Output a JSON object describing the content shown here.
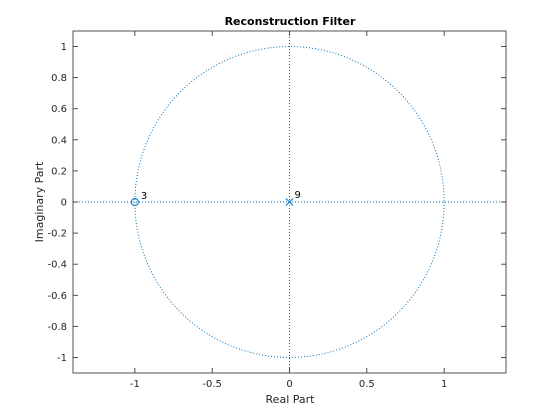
{
  "chart_data": {
    "type": "scatter",
    "title": "Reconstruction Filter",
    "xlabel": "Real Part",
    "ylabel": "Imaginary Part",
    "xlim": [
      -1.4,
      1.4
    ],
    "ylim": [
      -1.1,
      1.1
    ],
    "xticks": [
      -1,
      -0.5,
      0,
      0.5,
      1
    ],
    "xtick_labels": [
      "-1",
      "-0.5",
      "0",
      "0.5",
      "1"
    ],
    "yticks": [
      1,
      0.8,
      0.6,
      0.4,
      0.2,
      0,
      -0.2,
      -0.4,
      -0.6,
      -0.8,
      -1
    ],
    "ytick_labels": [
      "1",
      "0.8",
      "0.6",
      "0.4",
      "0.2",
      "0",
      "-0.2",
      "-0.4",
      "-0.6",
      "-0.8",
      "-1"
    ],
    "grid": false,
    "unit_circle": true,
    "zeros": [
      {
        "re": -1,
        "im": 0,
        "multiplicity": "3"
      }
    ],
    "poles": [
      {
        "re": 0,
        "im": 0,
        "multiplicity": "9"
      }
    ],
    "colors": {
      "marker": "#0072bd",
      "guide": "#0072bd",
      "axes": "#262626"
    }
  }
}
